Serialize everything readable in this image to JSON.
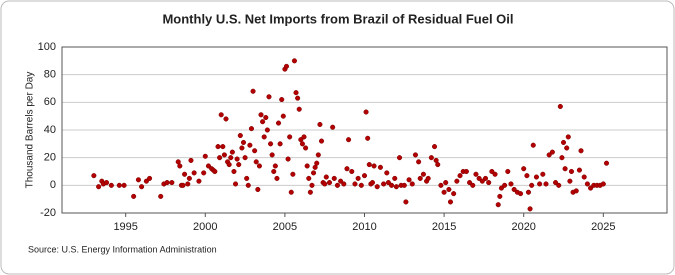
{
  "chart_data": {
    "type": "scatter",
    "title": "Monthly U.S. Net Imports from Brazil of Residual Fuel Oil",
    "y_label": "Thousand Barrels per Day",
    "source": "Source: U.S. Energy Information Administration",
    "color": "#b30000",
    "grid": true,
    "xlim": [
      1991,
      2029
    ],
    "xticks": [
      1995,
      2000,
      2005,
      2010,
      2015,
      2020,
      2025
    ],
    "ylim": [
      -20,
      100
    ],
    "yticks": [
      -20,
      0,
      20,
      40,
      60,
      80,
      100
    ],
    "x": [
      1993.0,
      1993.3,
      1993.5,
      1993.6,
      1993.8,
      1994.1,
      1994.6,
      1994.9,
      1995.5,
      1995.8,
      1996.0,
      1996.3,
      1996.5,
      1997.2,
      1997.4,
      1997.6,
      1997.9,
      1998.3,
      1998.4,
      1998.5,
      1998.6,
      1998.7,
      1998.9,
      1999.0,
      1999.1,
      1999.3,
      1999.6,
      1999.9,
      2000.0,
      2000.2,
      2000.4,
      2000.5,
      2000.6,
      2000.8,
      2000.9,
      2001.0,
      2001.1,
      2001.2,
      2001.3,
      2001.4,
      2001.5,
      2001.6,
      2001.7,
      2001.8,
      2001.9,
      2002.0,
      2002.1,
      2002.2,
      2002.3,
      2002.4,
      2002.5,
      2002.6,
      2002.7,
      2002.8,
      2002.9,
      2003.0,
      2003.1,
      2003.2,
      2003.3,
      2003.4,
      2003.5,
      2003.6,
      2003.7,
      2003.8,
      2003.9,
      2004.0,
      2004.1,
      2004.2,
      2004.3,
      2004.4,
      2004.5,
      2004.6,
      2004.7,
      2004.8,
      2004.9,
      2005.0,
      2005.1,
      2005.2,
      2005.3,
      2005.4,
      2005.5,
      2005.6,
      2005.7,
      2005.8,
      2005.9,
      2006.0,
      2006.1,
      2006.2,
      2006.3,
      2006.4,
      2006.5,
      2006.6,
      2006.7,
      2006.8,
      2006.9,
      2007.0,
      2007.1,
      2007.2,
      2007.3,
      2007.4,
      2007.5,
      2007.6,
      2007.8,
      2008.0,
      2008.1,
      2008.3,
      2008.5,
      2008.7,
      2008.9,
      2009.0,
      2009.2,
      2009.4,
      2009.6,
      2009.8,
      2010.0,
      2010.1,
      2010.2,
      2010.3,
      2010.4,
      2010.5,
      2010.6,
      2010.8,
      2011.0,
      2011.2,
      2011.4,
      2011.5,
      2011.7,
      2011.9,
      2012.0,
      2012.2,
      2012.3,
      2012.5,
      2012.6,
      2012.8,
      2013.0,
      2013.2,
      2013.4,
      2013.5,
      2013.7,
      2013.9,
      2014.0,
      2014.2,
      2014.4,
      2014.5,
      2014.6,
      2014.8,
      2015.0,
      2015.1,
      2015.3,
      2015.4,
      2015.6,
      2015.8,
      2016.0,
      2016.2,
      2016.4,
      2016.6,
      2016.8,
      2017.0,
      2017.2,
      2017.4,
      2017.6,
      2017.8,
      2018.0,
      2018.2,
      2018.4,
      2018.5,
      2018.6,
      2018.8,
      2019.0,
      2019.2,
      2019.4,
      2019.6,
      2019.8,
      2020.0,
      2020.2,
      2020.3,
      2020.4,
      2020.5,
      2020.6,
      2020.8,
      2021.0,
      2021.2,
      2021.4,
      2021.6,
      2021.8,
      2022.0,
      2022.2,
      2022.3,
      2022.4,
      2022.5,
      2022.6,
      2022.7,
      2022.8,
      2022.9,
      2023.0,
      2023.1,
      2023.3,
      2023.5,
      2023.6,
      2023.8,
      2024.0,
      2024.2,
      2024.4,
      2024.6,
      2024.8,
      2025.0,
      2025.2
    ],
    "values": [
      7,
      -1,
      3,
      1,
      2,
      0,
      0,
      0,
      -8,
      4,
      -1,
      3,
      5,
      -8,
      1,
      2,
      2,
      17,
      14,
      0,
      0,
      8,
      1,
      5,
      18,
      9,
      3,
      9,
      21,
      14,
      12,
      11,
      10,
      28,
      20,
      51,
      28,
      22,
      48,
      17,
      15,
      20,
      24,
      10,
      1,
      19,
      15,
      36,
      27,
      31,
      20,
      5,
      0,
      29,
      41,
      68,
      25,
      17,
      -3,
      14,
      51,
      46,
      35,
      49,
      40,
      64,
      30,
      22,
      10,
      14,
      5,
      45,
      30,
      62,
      50,
      84,
      86,
      19,
      35,
      -5,
      8,
      90,
      67,
      63,
      55,
      33,
      30,
      35,
      27,
      14,
      5,
      -5,
      0,
      9,
      13,
      16,
      22,
      44,
      32,
      2,
      1,
      6,
      2,
      42,
      5,
      0,
      3,
      1,
      12,
      33,
      10,
      1,
      5,
      0,
      7,
      53,
      34,
      15,
      1,
      2,
      14,
      -1,
      13,
      1,
      9,
      2,
      0,
      5,
      -1,
      20,
      0,
      0,
      -12,
      4,
      1,
      22,
      17,
      5,
      8,
      3,
      5,
      20,
      28,
      18,
      15,
      0,
      -5,
      2,
      -3,
      -12,
      -6,
      3,
      7,
      10,
      10,
      2,
      0,
      8,
      5,
      3,
      5,
      2,
      10,
      8,
      -14,
      -8,
      -2,
      0,
      10,
      1,
      -3,
      -5,
      -6,
      12,
      7,
      -5,
      -17,
      0,
      29,
      6,
      1,
      8,
      1,
      22,
      24,
      2,
      0,
      57,
      20,
      31,
      12,
      27,
      35,
      3,
      10,
      -5,
      -4,
      11,
      25,
      6,
      1,
      -2,
      0,
      0,
      0,
      1,
      16
    ]
  }
}
